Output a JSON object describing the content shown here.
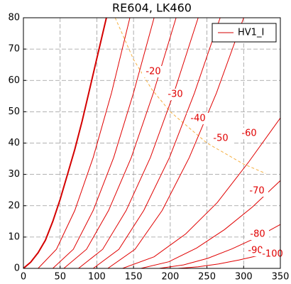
{
  "chart_data": {
    "type": "line",
    "title": "RE604, LK460",
    "xlim": [
      0,
      350
    ],
    "xticks": [
      0,
      50,
      100,
      150,
      200,
      250,
      300,
      350
    ],
    "ylim": [
      0,
      80
    ],
    "yticks": [
      0,
      10,
      20,
      30,
      40,
      50,
      60,
      70,
      80
    ],
    "grid": true,
    "legend": "upper right",
    "series": [
      {
        "name": "HV1_I",
        "color": "#d40000",
        "linewidth": 2,
        "x": [
          0,
          10,
          20,
          30,
          40,
          50,
          60,
          70,
          80,
          90,
          100,
          113
        ],
        "values": [
          0,
          2,
          5,
          9,
          15,
          22,
          30,
          38,
          47,
          57,
          67,
          80
        ]
      },
      {
        "color": "#e00000",
        "x": [
          20,
          45,
          70,
          95,
          120,
          145
        ],
        "values": [
          0,
          6.1,
          18.5,
          35.4,
          56,
          80
        ]
      },
      {
        "label": "-20",
        "color": "#e00000",
        "x": [
          40,
          68,
          95,
          123,
          150,
          178
        ],
        "values": [
          0,
          6.1,
          18.5,
          35.4,
          56,
          80
        ]
      },
      {
        "label": "-30",
        "color": "#e00000",
        "x": [
          55,
          86,
          116,
          147,
          177,
          208
        ],
        "values": [
          0,
          6.1,
          18.5,
          35.4,
          56,
          80
        ]
      },
      {
        "label": "-40",
        "color": "#e00000",
        "x": [
          75,
          108,
          140,
          173,
          205,
          238
        ],
        "values": [
          0,
          6.1,
          18.5,
          35.4,
          56,
          80
        ]
      },
      {
        "label": "-50",
        "color": "#e00000",
        "x": [
          95,
          130,
          164,
          199,
          233,
          268
        ],
        "values": [
          0,
          6.1,
          18.5,
          35.4,
          56,
          80
        ]
      },
      {
        "label": "-60",
        "color": "#e00000",
        "x": [
          115,
          152,
          189,
          226,
          263,
          300
        ],
        "values": [
          0,
          6.1,
          18.5,
          35.4,
          56,
          80
        ]
      },
      {
        "label": "-70",
        "color": "#e00000",
        "x": [
          135,
          178,
          221,
          264,
          307,
          350
        ],
        "values": [
          0,
          3.7,
          11,
          21,
          34,
          48
        ]
      },
      {
        "label": "-80",
        "color": "#e00000",
        "x": [
          160,
          198,
          236,
          274,
          312,
          350
        ],
        "values": [
          0,
          2.1,
          6.5,
          12.4,
          19.6,
          28
        ]
      },
      {
        "label": "-90",
        "color": "#e00000",
        "x": [
          185,
          218,
          251,
          284,
          317,
          350
        ],
        "values": [
          0,
          1.1,
          3.2,
          6.2,
          9.8,
          14
        ]
      },
      {
        "label": "-100",
        "color": "#e00000",
        "x": [
          210,
          238,
          266,
          294,
          322,
          350
        ],
        "values": [
          0,
          0.5,
          1.4,
          2.7,
          4.2,
          6
        ]
      }
    ],
    "limit_curve": {
      "color": "#f5b041",
      "dashed": true,
      "x": [
        125,
        150,
        175,
        200,
        250,
        300,
        330
      ],
      "values": [
        80,
        66.7,
        57.1,
        50,
        40,
        33.3,
        30.3
      ]
    }
  }
}
